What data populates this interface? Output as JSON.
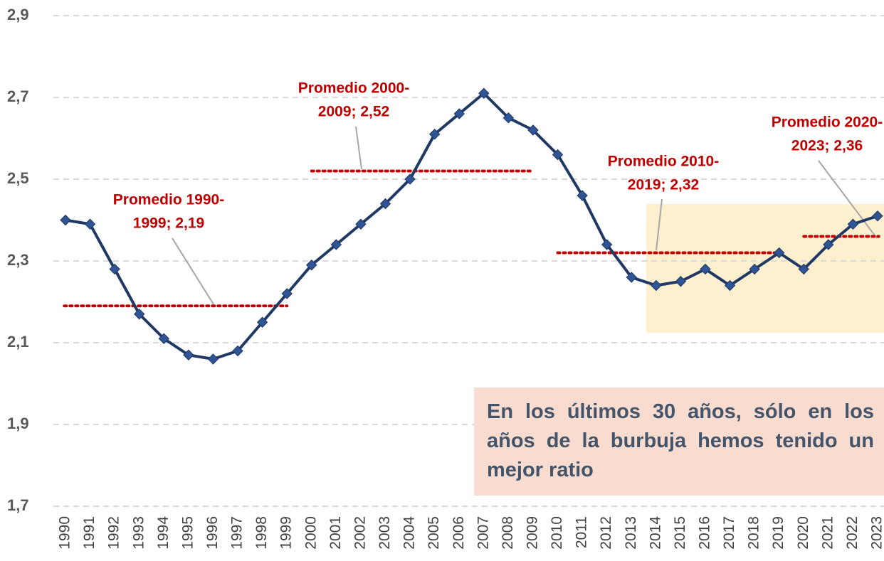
{
  "chart_data": {
    "type": "line",
    "categories": [
      "1990",
      "1991",
      "1992",
      "1993",
      "1994",
      "1995",
      "1996",
      "1997",
      "1998",
      "1999",
      "2000",
      "2001",
      "2002",
      "2003",
      "2004",
      "2005",
      "2006",
      "2007",
      "2008",
      "2009",
      "2010",
      "2011",
      "2012",
      "2013",
      "2014",
      "2015",
      "2016",
      "2017",
      "2018",
      "2019",
      "2020",
      "2021",
      "2022",
      "2023"
    ],
    "series": [
      {
        "color": "#1f3864",
        "marker_color": "#2f5597",
        "values": [
          2.4,
          2.39,
          2.28,
          2.17,
          2.11,
          2.07,
          2.06,
          2.08,
          2.15,
          2.22,
          2.29,
          2.34,
          2.39,
          2.44,
          2.5,
          2.61,
          2.66,
          2.71,
          2.65,
          2.62,
          2.56,
          2.46,
          2.34,
          2.26,
          2.24,
          2.25,
          2.28,
          2.24,
          2.28,
          2.32,
          2.28,
          2.34,
          2.39,
          2.41
        ]
      }
    ],
    "ylim": [
      1.7,
      2.9
    ],
    "yticks": [
      {
        "value": 1.7,
        "label": "1,7"
      },
      {
        "value": 1.9,
        "label": "1,9"
      },
      {
        "value": 2.1,
        "label": "2,1"
      },
      {
        "value": 2.3,
        "label": "2,3"
      },
      {
        "value": 2.5,
        "label": "2,5"
      },
      {
        "value": 2.7,
        "label": "2,7"
      },
      {
        "value": 2.9,
        "label": "2,9"
      }
    ],
    "grid": true,
    "averages": [
      {
        "value": 2.19,
        "lines": [
          "Promedio 1990-",
          "1999; 2,19"
        ],
        "color": "#c00000"
      },
      {
        "value": 2.52,
        "lines": [
          "Promedio 2000-",
          "2009; 2,52"
        ],
        "color": "#c00000"
      },
      {
        "value": 2.32,
        "lines": [
          "Promedio 2010-",
          "2019; 2,32"
        ],
        "color": "#c00000"
      },
      {
        "value": 2.36,
        "lines": [
          "Promedio 2020-",
          "2023; 2,36"
        ],
        "color": "#c00000"
      }
    ],
    "note": "En los últimos 30 años, sólo en los años de la burbuja hemos tenido un mejor ratio"
  }
}
